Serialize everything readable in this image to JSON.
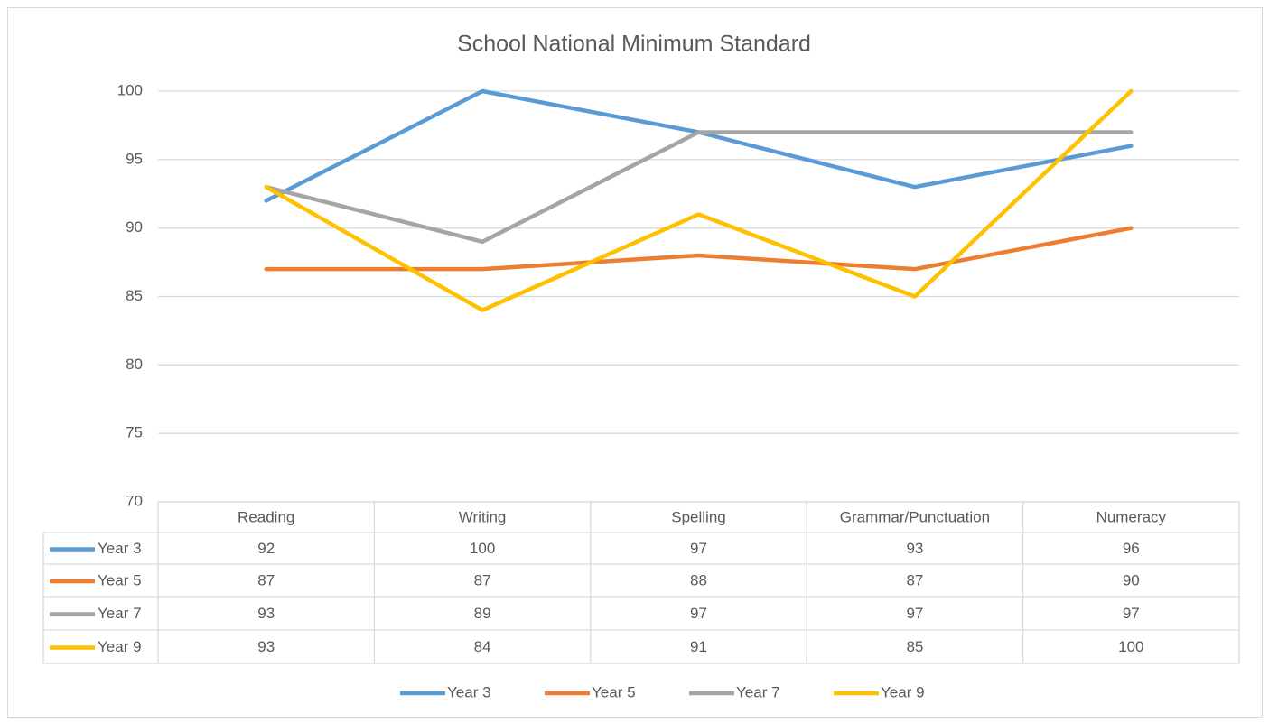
{
  "chart_data": {
    "type": "line",
    "title": "School National Minimum Standard",
    "categories": [
      "Reading",
      "Writing",
      "Spelling",
      "Grammar/Punctuation",
      "Numeracy"
    ],
    "series": [
      {
        "name": "Year 3",
        "color": "#5b9bd5",
        "values": [
          92,
          100,
          97,
          93,
          96
        ]
      },
      {
        "name": "Year 5",
        "color": "#ed7d31",
        "values": [
          87,
          87,
          88,
          87,
          90
        ]
      },
      {
        "name": "Year 7",
        "color": "#a5a5a5",
        "values": [
          93,
          89,
          97,
          97,
          97
        ]
      },
      {
        "name": "Year 9",
        "color": "#ffc000",
        "values": [
          93,
          84,
          91,
          85,
          100
        ]
      }
    ],
    "ylim": [
      70,
      100
    ],
    "yticks": [
      70,
      75,
      80,
      85,
      90,
      95,
      100
    ],
    "grid": true,
    "legend": "bottom"
  }
}
